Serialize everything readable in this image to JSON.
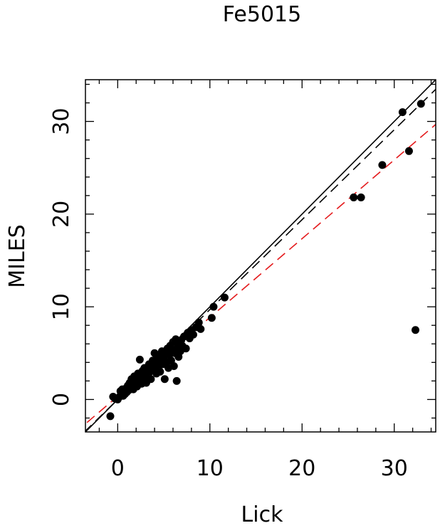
{
  "chart_data": {
    "type": "scatter",
    "title": "Fe5015",
    "xlabel": "Lick",
    "ylabel": "MILES",
    "xlim": [
      -3.5,
      34.5
    ],
    "ylim": [
      -3.5,
      34.5
    ],
    "xticks": [
      0,
      10,
      20,
      30
    ],
    "yticks": [
      0,
      10,
      20,
      30
    ],
    "xtick_labels": [
      "0",
      "10",
      "20",
      "30"
    ],
    "ytick_labels": [
      "0",
      "10",
      "20",
      "30"
    ],
    "grid": false,
    "legend": "none",
    "colors": {
      "points": "#000000",
      "identity_line": "#000000",
      "fit_dashed": "#000000",
      "fit_red_dashed": "#e41a1c"
    },
    "lines": [
      {
        "style": "solid",
        "color": "#000000",
        "slope": 1.0,
        "intercept": 0.0
      },
      {
        "style": "dashed",
        "color": "#000000",
        "slope": 0.97,
        "intercept": 0.0
      },
      {
        "style": "dashed",
        "color": "#e41a1c",
        "slope": 0.85,
        "intercept": 0.35
      }
    ],
    "points": [
      [
        -0.8,
        -1.8
      ],
      [
        -0.5,
        0.3
      ],
      [
        -0.3,
        0.1
      ],
      [
        0.0,
        0.0
      ],
      [
        0.2,
        0.3
      ],
      [
        0.3,
        0.9
      ],
      [
        0.5,
        1.1
      ],
      [
        0.6,
        0.4
      ],
      [
        0.8,
        0.6
      ],
      [
        0.9,
        1.2
      ],
      [
        1.0,
        0.8
      ],
      [
        1.1,
        1.5
      ],
      [
        1.2,
        1.0
      ],
      [
        1.3,
        1.8
      ],
      [
        1.4,
        1.3
      ],
      [
        1.5,
        2.2
      ],
      [
        1.6,
        1.6
      ],
      [
        1.7,
        1.1
      ],
      [
        1.8,
        2.5
      ],
      [
        1.9,
        1.9
      ],
      [
        2.0,
        2.2
      ],
      [
        2.1,
        1.4
      ],
      [
        2.2,
        2.8
      ],
      [
        2.3,
        2.0
      ],
      [
        2.4,
        4.3
      ],
      [
        2.5,
        2.6
      ],
      [
        2.6,
        1.7
      ],
      [
        2.7,
        3.1
      ],
      [
        2.8,
        2.4
      ],
      [
        2.9,
        3.4
      ],
      [
        3.0,
        2.8
      ],
      [
        3.1,
        1.8
      ],
      [
        3.2,
        3.3
      ],
      [
        3.3,
        2.6
      ],
      [
        3.4,
        3.8
      ],
      [
        3.5,
        3.0
      ],
      [
        3.6,
        2.2
      ],
      [
        3.7,
        3.6
      ],
      [
        3.8,
        4.2
      ],
      [
        3.9,
        3.2
      ],
      [
        4.0,
        5.0
      ],
      [
        4.1,
        3.8
      ],
      [
        4.2,
        2.8
      ],
      [
        4.3,
        4.4
      ],
      [
        4.4,
        3.5
      ],
      [
        4.5,
        4.8
      ],
      [
        4.6,
        3.0
      ],
      [
        4.7,
        4.1
      ],
      [
        4.8,
        5.2
      ],
      [
        4.9,
        3.8
      ],
      [
        5.0,
        4.5
      ],
      [
        5.1,
        2.2
      ],
      [
        5.2,
        5.0
      ],
      [
        5.3,
        4.0
      ],
      [
        5.4,
        5.5
      ],
      [
        5.5,
        3.4
      ],
      [
        5.6,
        4.8
      ],
      [
        5.7,
        5.8
      ],
      [
        5.8,
        4.2
      ],
      [
        5.9,
        5.3
      ],
      [
        6.0,
        6.2
      ],
      [
        6.1,
        3.6
      ],
      [
        6.2,
        5.0
      ],
      [
        6.3,
        6.5
      ],
      [
        6.4,
        2.0
      ],
      [
        6.5,
        5.6
      ],
      [
        6.6,
        4.6
      ],
      [
        6.7,
        6.0
      ],
      [
        6.8,
        5.2
      ],
      [
        6.9,
        6.4
      ],
      [
        7.0,
        5.8
      ],
      [
        7.2,
        6.8
      ],
      [
        7.4,
        5.5
      ],
      [
        7.6,
        7.2
      ],
      [
        7.8,
        6.6
      ],
      [
        8.0,
        7.5
      ],
      [
        8.2,
        7.0
      ],
      [
        8.5,
        7.8
      ],
      [
        8.8,
        8.3
      ],
      [
        9.0,
        7.6
      ],
      [
        10.2,
        8.8
      ],
      [
        10.4,
        10.0
      ],
      [
        11.6,
        11.0
      ],
      [
        25.6,
        21.8
      ],
      [
        26.4,
        21.8
      ],
      [
        28.7,
        25.3
      ],
      [
        30.9,
        31.0
      ],
      [
        31.6,
        26.8
      ],
      [
        32.3,
        7.5
      ],
      [
        32.9,
        31.9
      ]
    ]
  }
}
